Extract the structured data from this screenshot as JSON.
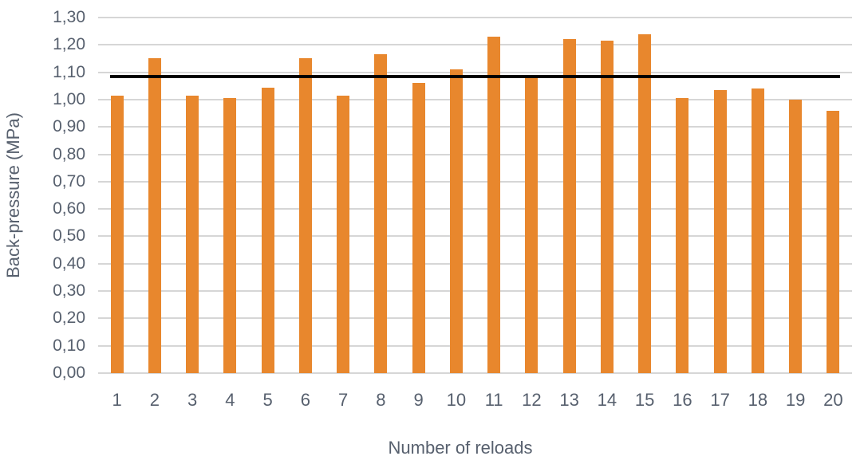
{
  "chart_data": {
    "type": "bar",
    "title": "",
    "xlabel": "Number of reloads",
    "ylabel": "Back-pressure (MPa)",
    "categories": [
      "1",
      "2",
      "3",
      "4",
      "5",
      "6",
      "7",
      "8",
      "9",
      "10",
      "11",
      "12",
      "13",
      "14",
      "15",
      "16",
      "17",
      "18",
      "19",
      "20"
    ],
    "values": [
      1.015,
      1.15,
      1.015,
      1.005,
      1.045,
      1.15,
      1.015,
      1.165,
      1.06,
      1.11,
      1.23,
      1.08,
      1.22,
      1.215,
      1.24,
      1.005,
      1.035,
      1.04,
      1.0,
      0.96
    ],
    "reference_line": {
      "value": 1.085,
      "color": "#000000"
    },
    "ylim": [
      0,
      1.3
    ],
    "ytick_step": 0.1,
    "ytick_labels": [
      "0,00",
      "0,10",
      "0,20",
      "0,30",
      "0,40",
      "0,50",
      "0,60",
      "0,70",
      "0,80",
      "0,90",
      "1,00",
      "1,10",
      "1,20",
      "1,30"
    ],
    "grid": true,
    "legend": null,
    "bar_color": "#E8872D",
    "gridline_color": "#D6D6D6",
    "text_color": "#57606E",
    "background": "#FFFFFF"
  }
}
